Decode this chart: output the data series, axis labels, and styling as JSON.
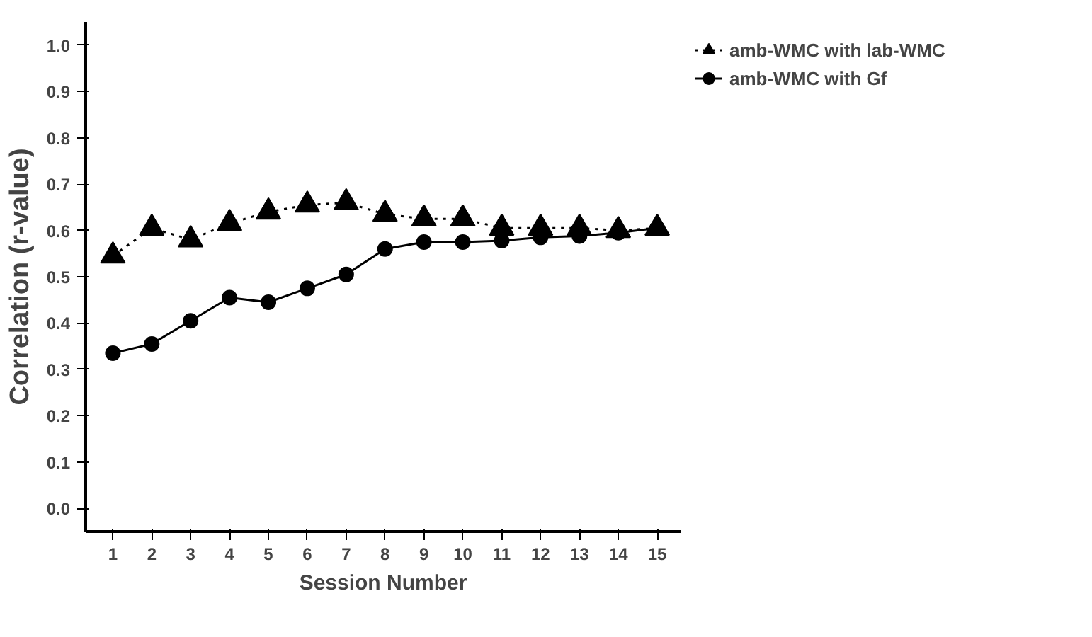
{
  "chart_data": {
    "type": "line",
    "xlabel": "Session Number",
    "ylabel": "Correlation (r-value)",
    "x": [
      1,
      2,
      3,
      4,
      5,
      6,
      7,
      8,
      9,
      10,
      11,
      12,
      13,
      14,
      15
    ],
    "xlim": [
      0.3,
      15.6
    ],
    "xticks": [
      1,
      2,
      3,
      4,
      5,
      6,
      7,
      8,
      9,
      10,
      11,
      12,
      13,
      14,
      15
    ],
    "ylim": [
      -0.05,
      1.05
    ],
    "yticks": [
      {
        "value": 0,
        "label": "0.0"
      },
      {
        "value": 0.1,
        "label": "0.1"
      },
      {
        "value": 0.2,
        "label": "0.2"
      },
      {
        "value": 0.3,
        "label": "0.3"
      },
      {
        "value": 0.4,
        "label": "0.4"
      },
      {
        "value": 0.5,
        "label": "0.5"
      },
      {
        "value": 0.6,
        "label": "0.6"
      },
      {
        "value": 0.7,
        "label": "0.7"
      },
      {
        "value": 0.8,
        "label": "0.8"
      },
      {
        "value": 0.9,
        "label": "0.9"
      },
      {
        "value": 1,
        "label": "1.0"
      }
    ],
    "grid": false,
    "legend": "top right",
    "series": [
      {
        "name": "amb-WMC with lab-WMC",
        "color": "#000000",
        "marker": "triangle",
        "line_style": "dotted",
        "values": [
          0.545,
          0.605,
          0.58,
          0.615,
          0.64,
          0.655,
          0.66,
          0.635,
          0.625,
          0.625,
          0.605,
          0.605,
          0.605,
          0.6,
          0.605
        ]
      },
      {
        "name": "amb-WMC with Gf",
        "color": "#000000",
        "marker": "circle",
        "line_style": "solid",
        "values": [
          0.335,
          0.355,
          0.405,
          0.455,
          0.445,
          0.475,
          0.505,
          0.56,
          0.575,
          0.575,
          0.578,
          0.585,
          0.588,
          0.595,
          0.605
        ]
      }
    ]
  }
}
